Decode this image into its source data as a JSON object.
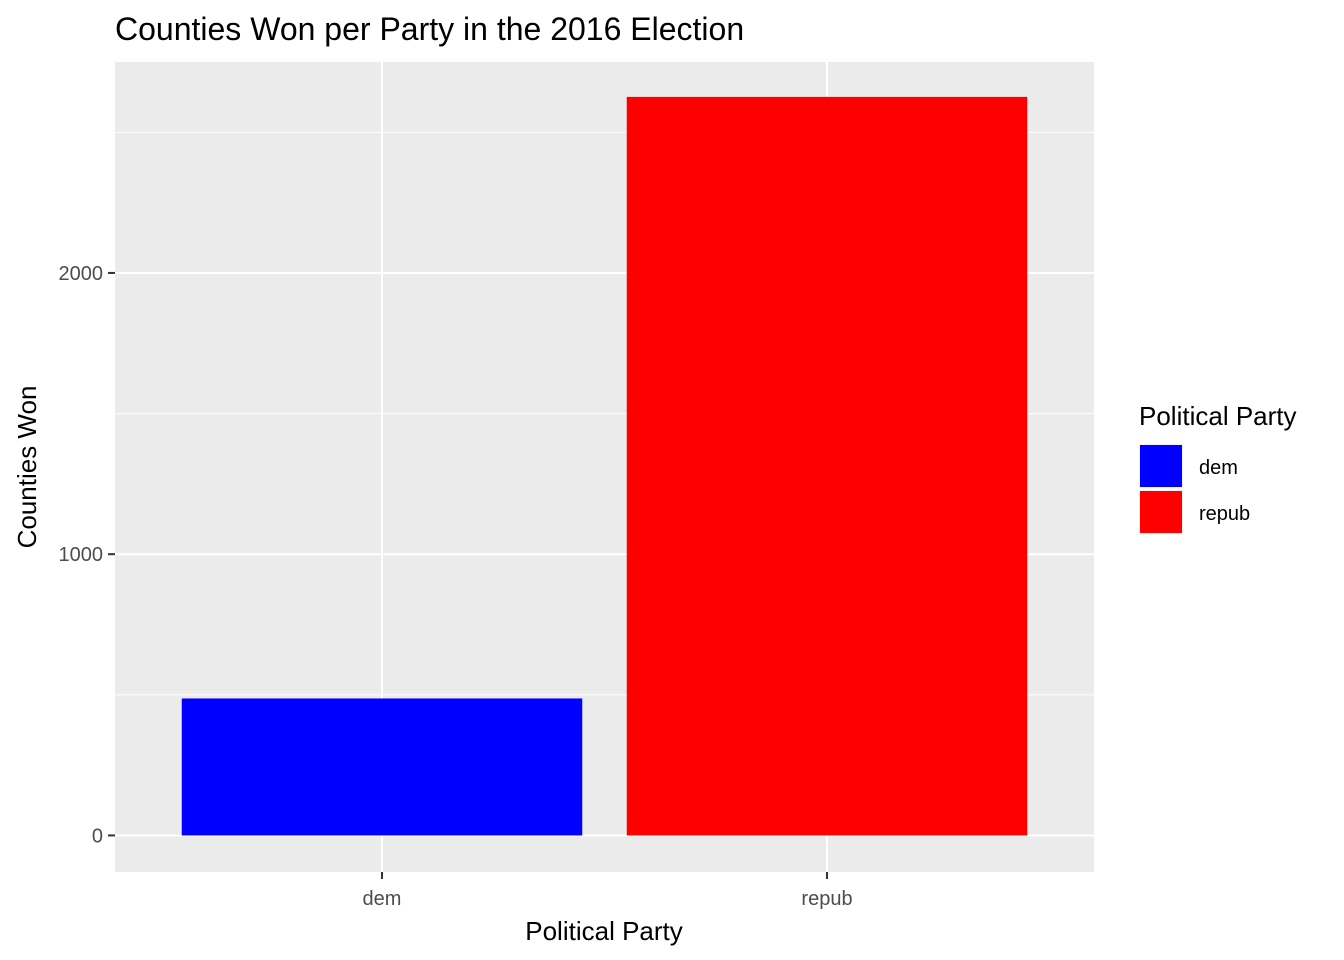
{
  "chart_data": {
    "type": "bar",
    "title": "Counties Won per Party in the 2016 Election",
    "xlabel": "Political Party",
    "ylabel": "Counties Won",
    "categories": [
      "dem",
      "repub"
    ],
    "values": [
      487,
      2626
    ],
    "colors": [
      "#0000FF",
      "#FF0000"
    ],
    "ylim": [
      -130,
      2750
    ],
    "yticks": [
      0,
      1000,
      2000
    ],
    "ytick_labels": [
      "0",
      "1000",
      "2000"
    ],
    "grid": true,
    "panel_background": "#EBEBEB",
    "legend": {
      "title": "Political Party",
      "position": "right",
      "entries": [
        {
          "label": "dem",
          "color": "#0000FF"
        },
        {
          "label": "repub",
          "color": "#FF0000"
        }
      ]
    }
  }
}
